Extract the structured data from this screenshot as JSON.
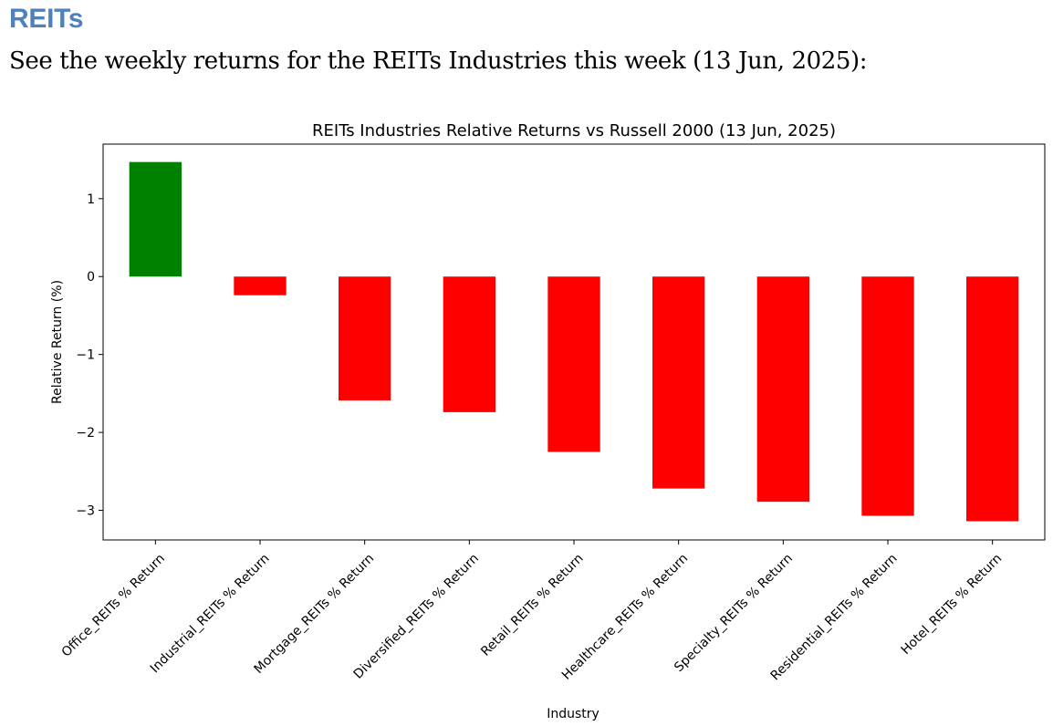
{
  "section": {
    "heading": "REITs",
    "intro": "See the weekly returns for the REITs Industries this week (13 Jun, 2025):"
  },
  "chart_data": {
    "type": "bar",
    "title": "REITs Industries Relative Returns vs Russell 2000 (13 Jun, 2025)",
    "xlabel": "Industry",
    "ylabel": "Relative Return (%)",
    "ylim": [
      -3.38,
      1.7
    ],
    "yticks": [
      1,
      0,
      -1,
      -2,
      -3
    ],
    "ytick_labels": [
      "1",
      "0",
      "−1",
      "−2",
      "−3"
    ],
    "grid": false,
    "legend": "none",
    "positive_color": "#008000",
    "negative_color": "#ff0000",
    "categories": [
      "Office_REITs % Return",
      "Industrial_REITs % Return",
      "Mortgage_REITs % Return",
      "Diversified_REITs % Return",
      "Retail_REITs % Return",
      "Healthcare_REITs % Return",
      "Specialty_REITs % Return",
      "Residential_REITs % Return",
      "Hotel_REITs % Return"
    ],
    "values": [
      1.47,
      -0.24,
      -1.59,
      -1.74,
      -2.25,
      -2.72,
      -2.89,
      -3.07,
      -3.14
    ]
  }
}
